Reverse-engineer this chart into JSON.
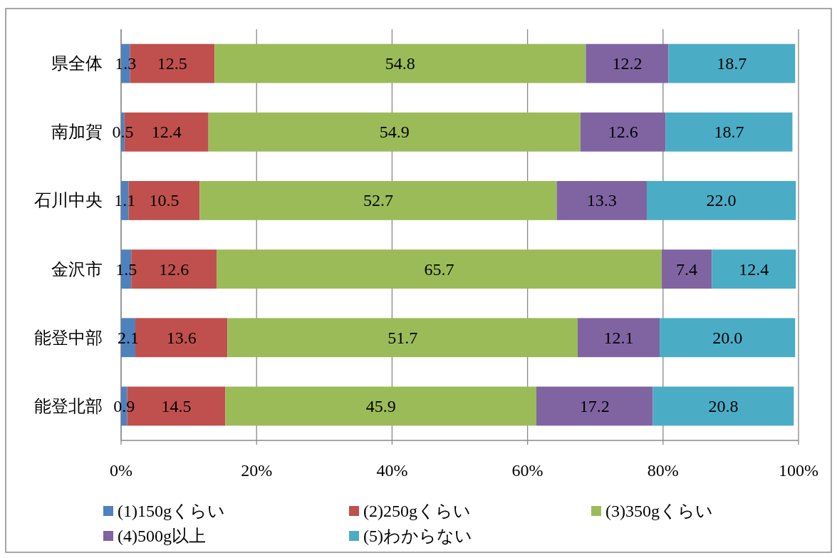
{
  "chart_data": {
    "type": "bar",
    "orientation": "horizontal",
    "stacked": true,
    "grid": "x",
    "legend": "bottom",
    "categories": [
      "県全体",
      "南加賀",
      "石川中央",
      "金沢市",
      "能登中部",
      "能登北部"
    ],
    "series": [
      {
        "name": "(1)150gくらい",
        "color": "#4f81bd",
        "values": [
          1.3,
          0.5,
          1.1,
          1.5,
          2.1,
          0.9
        ],
        "value_labels": [
          "1.3",
          "0.5",
          "1.1",
          "1.5",
          "2.1",
          "0.9"
        ]
      },
      {
        "name": "(2)250gくらい",
        "color": "#c0504d",
        "values": [
          12.5,
          12.4,
          10.5,
          12.6,
          13.6,
          14.5
        ],
        "value_labels": [
          "12.5",
          "12.4",
          "10.5",
          "12.6",
          "13.6",
          "14.5"
        ]
      },
      {
        "name": "(3)350gくらい",
        "color": "#9bbb59",
        "values": [
          54.8,
          54.9,
          52.7,
          65.7,
          51.7,
          45.9
        ],
        "value_labels": [
          "54.8",
          "54.9",
          "52.7",
          "65.7",
          "51.7",
          "45.9"
        ]
      },
      {
        "name": "(4)500g以上",
        "color": "#8064a2",
        "values": [
          12.2,
          12.6,
          13.3,
          7.4,
          12.1,
          17.2
        ],
        "value_labels": [
          "12.2",
          "12.6",
          "13.3",
          "7.4",
          "12.1",
          "17.2"
        ]
      },
      {
        "name": "(5)わからない",
        "color": "#4bacc6",
        "values": [
          18.7,
          18.7,
          22.0,
          12.4,
          20.0,
          20.8
        ],
        "value_labels": [
          "18.7",
          "18.7",
          "22.0",
          "12.4",
          "20.0",
          "20.8"
        ]
      }
    ],
    "xlim": [
      0,
      100
    ],
    "xticks": [
      {
        "value": 0,
        "label": "0%"
      },
      {
        "value": 20,
        "label": "20%"
      },
      {
        "value": 40,
        "label": "40%"
      },
      {
        "value": 60,
        "label": "60%"
      },
      {
        "value": 80,
        "label": "80%"
      },
      {
        "value": 100,
        "label": "100%"
      }
    ]
  }
}
